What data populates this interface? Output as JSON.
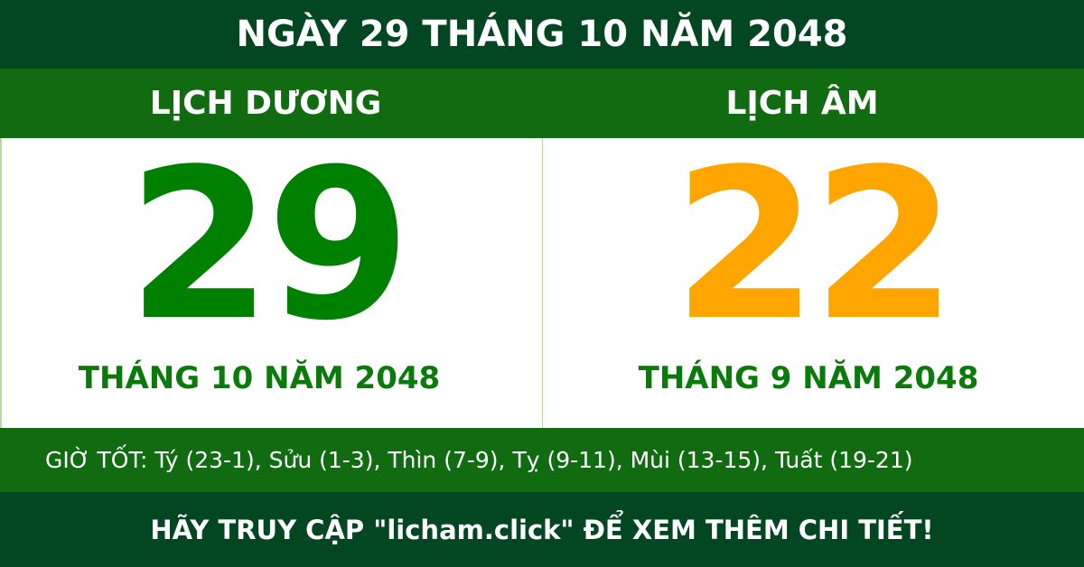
{
  "title": "NGÀY 29 THÁNG 10 NĂM 2048",
  "solar": {
    "label": "LỊCH DƯƠNG",
    "day": "29",
    "month_year": "THÁNG 10 NĂM 2048"
  },
  "lunar": {
    "label": "LỊCH ÂM",
    "day": "22",
    "month_year": "THÁNG 9 NĂM 2048"
  },
  "good_hours": "GIỜ TỐT: Tý (23-1), Sửu (1-3), Thìn (7-9), Tỵ (9-11), Mùi (13-15), Tuất (19-21)",
  "footer": "HÃY TRUY CẬP \"licham.click\" ĐỂ XEM THÊM CHI TIẾT!",
  "colors": {
    "dark_green": "#034722",
    "band_green": "#116b11",
    "solar_day": "#008000",
    "lunar_day": "#ffa500"
  }
}
